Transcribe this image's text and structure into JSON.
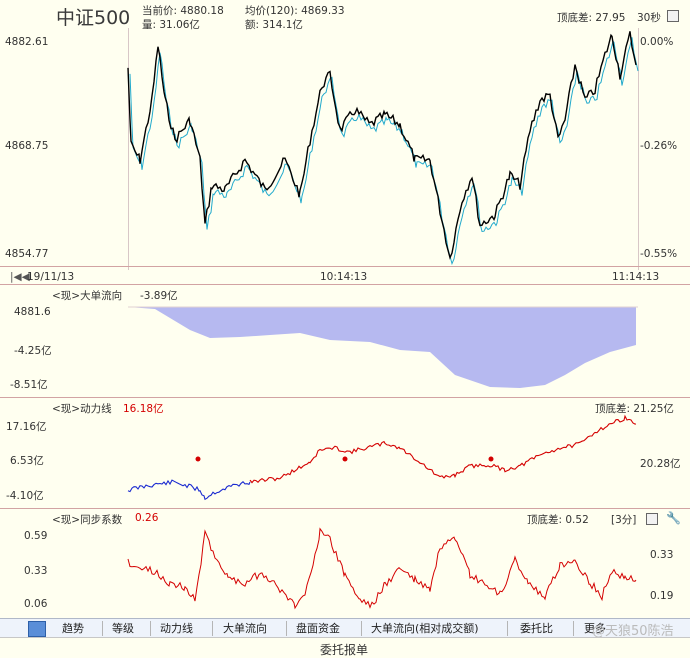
{
  "header": {
    "name": "中证500",
    "current_price_label": "当前价: 4880.18",
    "avg_price_label": "均价(120): 4869.33",
    "volume_label": "量: 31.06亿",
    "amount_label": "额: 314.1亿",
    "top_bottom_label": "顶底差: 27.95",
    "interval_label": "30秒"
  },
  "main_chart": {
    "y_left": [
      "4882.61",
      "4868.75",
      "4854.77"
    ],
    "y_right": [
      "0.00%",
      "-0.26%",
      "-0.55%"
    ],
    "x_labels": [
      "19/11/13",
      "10:14:13",
      "11:14:13"
    ]
  },
  "big_order_panel": {
    "title": "<现>大单流向",
    "value": "-3.89亿",
    "y_labels": [
      "4881.6",
      "-4.25亿",
      "-8.51亿"
    ],
    "colors": {
      "fill": "#b6b9f0"
    }
  },
  "power_panel": {
    "title": "<现>动力线",
    "value": "16.18亿",
    "top_bottom_label": "顶底差: 21.25亿",
    "y_labels": [
      "17.16亿",
      "6.53亿",
      "-4.10亿"
    ],
    "y_right": "20.28亿",
    "colors": {
      "line": "#d40000",
      "early": "#1a2ad0"
    }
  },
  "sync_panel": {
    "title": "<现>同步系数",
    "value": "0.26",
    "top_bottom_label": "顶底差: 0.52",
    "period_label": "[3分]",
    "y_labels": [
      "0.59",
      "0.33",
      "0.06"
    ],
    "y_right": [
      "0.33",
      "0.19"
    ]
  },
  "tabs": [
    "趋势",
    "等级",
    "动力线",
    "大单流向",
    "盘面资金",
    "大单流向(相对成交额)",
    "委托比",
    "更多"
  ],
  "bottom_label": "委托报单",
  "watermark": "@天狼50陈浩",
  "colors": {
    "price_line": "#000000",
    "avg_line": "#22aacc",
    "accent": "#d40000"
  }
}
